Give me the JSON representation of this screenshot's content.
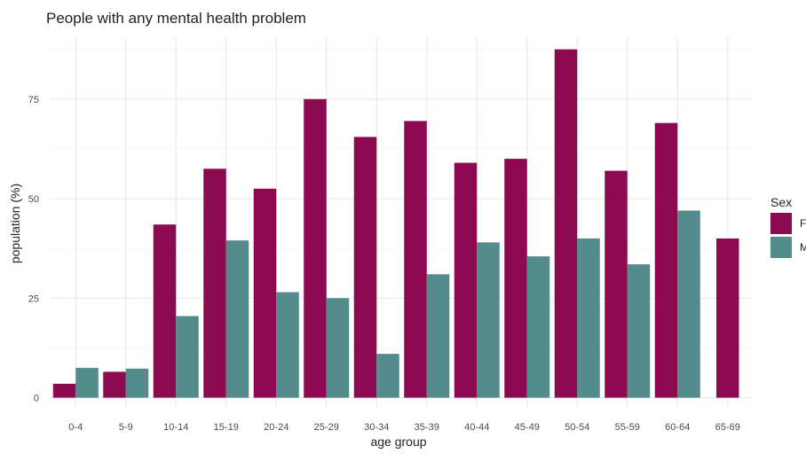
{
  "chart_data": {
    "type": "bar",
    "title": "People with any mental health problem",
    "xlabel": "age group",
    "ylabel": "population (%)",
    "categories": [
      "0-4",
      "5-9",
      "10-14",
      "15-19",
      "20-24",
      "25-29",
      "30-34",
      "35-39",
      "40-44",
      "45-49",
      "50-54",
      "55-59",
      "60-64",
      "65-69"
    ],
    "series": [
      {
        "name": "F",
        "color": "#8b0a50",
        "values": [
          3.5,
          6.5,
          43.5,
          57.5,
          52.5,
          75,
          65.5,
          69.5,
          59,
          60,
          87.5,
          57,
          69,
          40
        ]
      },
      {
        "name": "M",
        "color": "#548b8b",
        "values": [
          7.5,
          7.3,
          20.5,
          39.5,
          26.5,
          25,
          11,
          31,
          39,
          35.5,
          40,
          33.5,
          47,
          null
        ]
      }
    ],
    "yticks": [
      0,
      25,
      50,
      75
    ],
    "ylim": [
      0,
      92.5
    ],
    "grid": true,
    "legend": {
      "title": "Sex",
      "position": "right"
    }
  }
}
